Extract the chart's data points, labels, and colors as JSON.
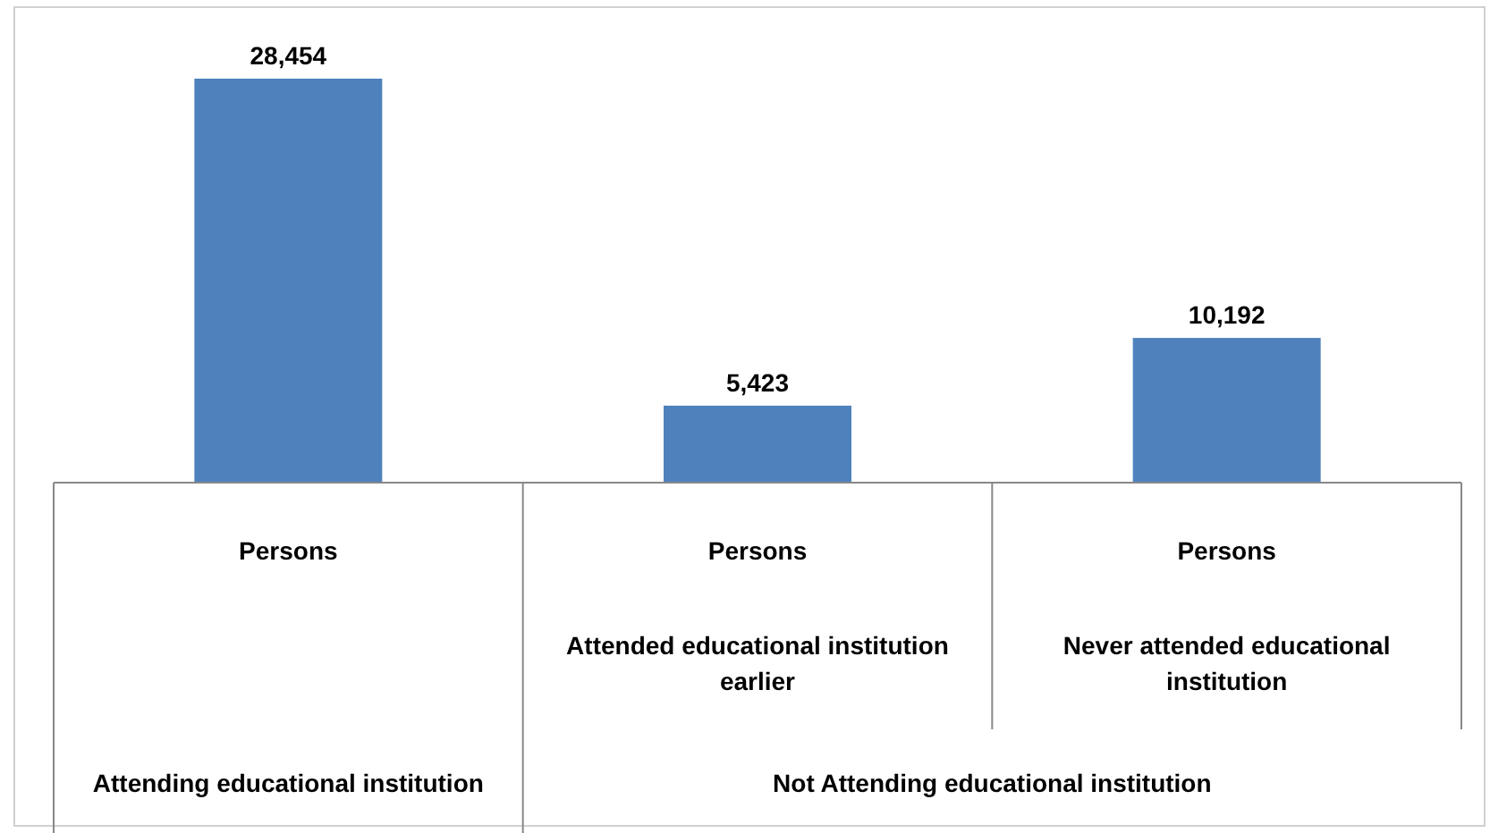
{
  "chart_data": {
    "type": "bar",
    "categories": [
      "Persons",
      "Persons",
      "Persons"
    ],
    "values": [
      28454,
      5423,
      10192
    ],
    "color": "#4f81bd",
    "value_labels": [
      "28,454",
      "5,423",
      "10,192"
    ],
    "annotations": [
      "Attended educational institution earlier",
      "Never attended educational institution",
      "Attending educational institution",
      "Not Attending educational institution"
    ]
  }
}
